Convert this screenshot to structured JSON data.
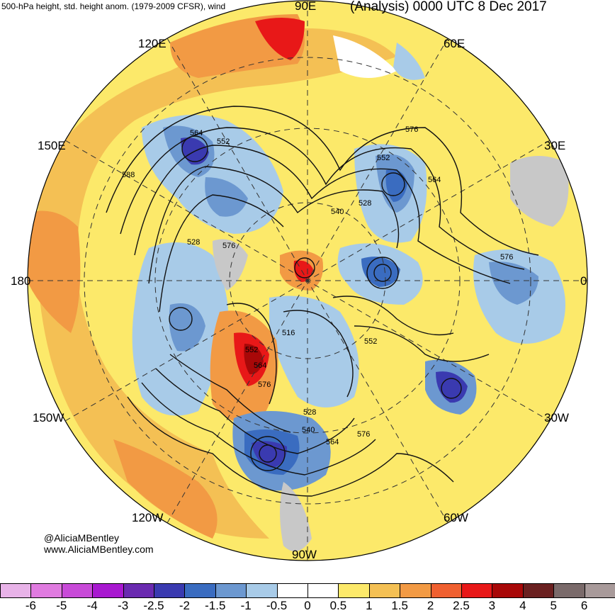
{
  "header": {
    "left_title": "500-hPa height, std. height anom. (1979-2009 CFSR), wind",
    "right_title": "(Analysis) 0000 UTC 8 Dec 2017"
  },
  "longitude_labels": {
    "e90": "90E",
    "e120": "120E",
    "e60": "60E",
    "e150": "150E",
    "e30": "30E",
    "d180": "180",
    "d0": "0",
    "w150": "150W",
    "w30": "30W",
    "w120": "120W",
    "w60": "60W",
    "w90": "90W"
  },
  "contour_labels": [
    "564",
    "552",
    "588",
    "528",
    "576",
    "576",
    "552",
    "564",
    "540",
    "528",
    "576",
    "516",
    "552",
    "552",
    "564",
    "576",
    "528",
    "540",
    "564",
    "576"
  ],
  "credit": {
    "handle": "@AliciaMBentley",
    "website": "www.AliciaMBentley.com"
  },
  "colorbar": {
    "colors": [
      "#e8b3e8",
      "#e07be0",
      "#c84ad8",
      "#a818d0",
      "#6a2ab0",
      "#3a3ab0",
      "#3a6cc0",
      "#6c98d0",
      "#a8cbe8",
      "#ffffff",
      "#ffffff",
      "#fce96a",
      "#f4c054",
      "#f29a44",
      "#f06030",
      "#e81818",
      "#a80808",
      "#6a2020",
      "#7a6a6a",
      "#a89a9a"
    ],
    "ticks": [
      "-6",
      "-5",
      "-4",
      "-3",
      "-2.5",
      "-2",
      "-1.5",
      "-1",
      "-0.5",
      "0",
      "0.5",
      "1",
      "1.5",
      "2",
      "2.5",
      "3",
      "4",
      "5",
      "6"
    ]
  }
}
